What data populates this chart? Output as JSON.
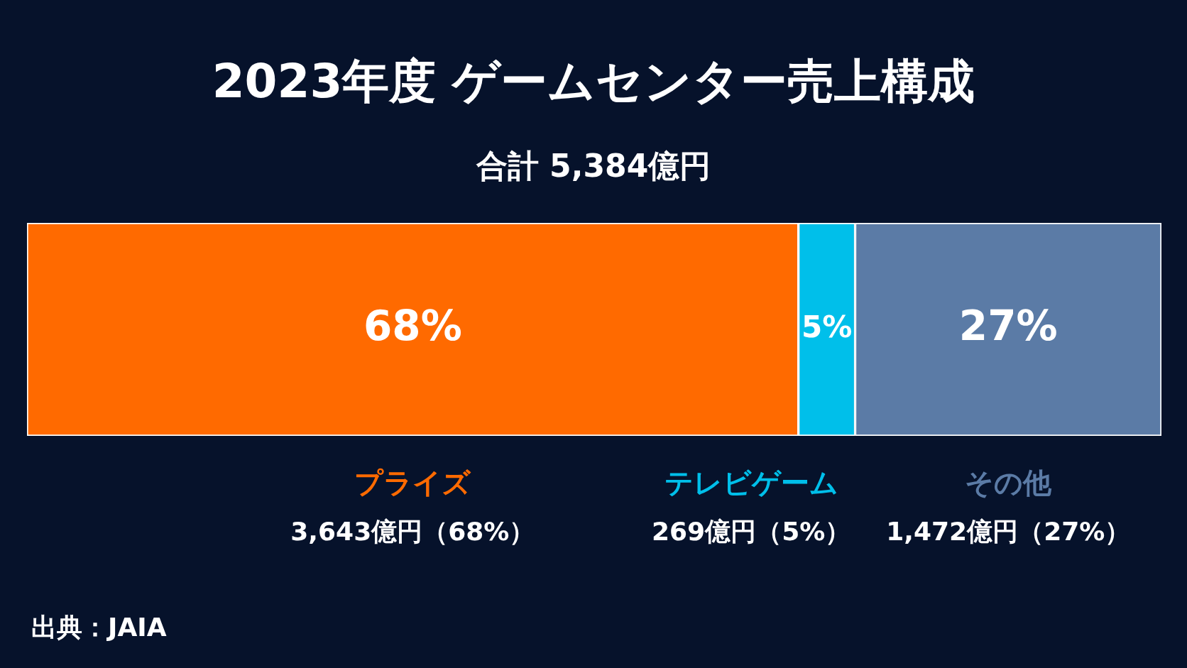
{
  "chart_data": {
    "type": "bar",
    "orientation": "horizontal",
    "stacked": true,
    "title": "2023年度 ゲームセンター売上構成",
    "subtitle": "合計 5,384億円",
    "categories": [
      null
    ],
    "series": [
      {
        "name": "プライズ",
        "color": "#ff6a00",
        "values": [
          68
        ],
        "value_labels": [
          "68%"
        ]
      },
      {
        "name": "テレビゲーム",
        "color": "#00bfea",
        "values": [
          5
        ],
        "value_labels": [
          "5%"
        ]
      },
      {
        "name": "その他",
        "color": "#5b7ba6",
        "values": [
          27
        ],
        "value_labels": [
          "27%"
        ]
      }
    ],
    "annotations": [
      "3,643億円（68%）",
      "269億円（5%）",
      "1,472億円（27%）",
      "出典：JAIA"
    ]
  }
}
